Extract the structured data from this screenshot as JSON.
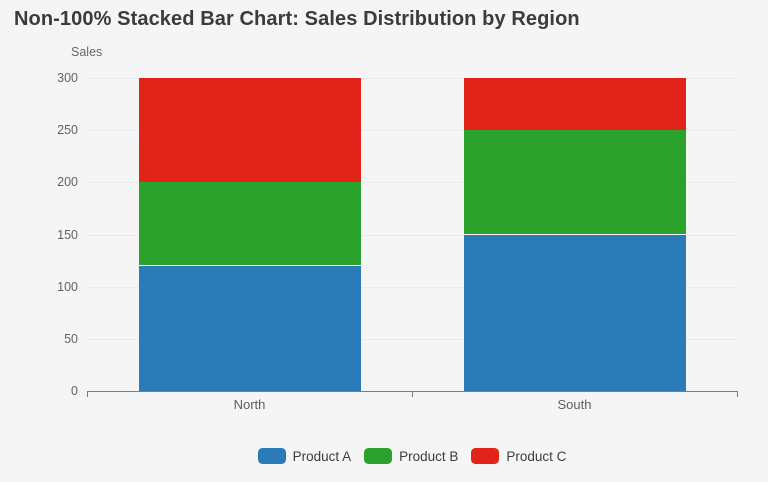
{
  "page": {
    "background": "#f5f5f6"
  },
  "header": {
    "title": "Non-100% Stacked Bar Chart: Sales Distribution by Region"
  },
  "colors": {
    "title_text": "#3b3b3b",
    "axis_text": "#636365",
    "axis_line": "#7b7b7b",
    "gridline": "#e7ebf2",
    "product_a": "#2b7bb9",
    "product_b": "#2aa22c",
    "product_c": "#e2231a"
  },
  "chart_data": {
    "type": "bar",
    "stacked": true,
    "title": "Non-100% Stacked Bar Chart: Sales Distribution by Region",
    "xlabel": "",
    "ylabel": "Sales",
    "categories": [
      "North",
      "South"
    ],
    "series": [
      {
        "name": "Product A",
        "color": "#2b7bb9",
        "values": [
          120,
          150
        ]
      },
      {
        "name": "Product B",
        "color": "#2aa22c",
        "values": [
          80,
          100
        ]
      },
      {
        "name": "Product C",
        "color": "#e2231a",
        "values": [
          100,
          50
        ]
      }
    ],
    "totals": [
      300,
      300
    ],
    "ylim": [
      0,
      300
    ],
    "ytick_step": 50,
    "yticks": [
      0,
      50,
      100,
      150,
      200,
      250,
      300
    ],
    "grid": true,
    "legend_position": "bottom"
  }
}
